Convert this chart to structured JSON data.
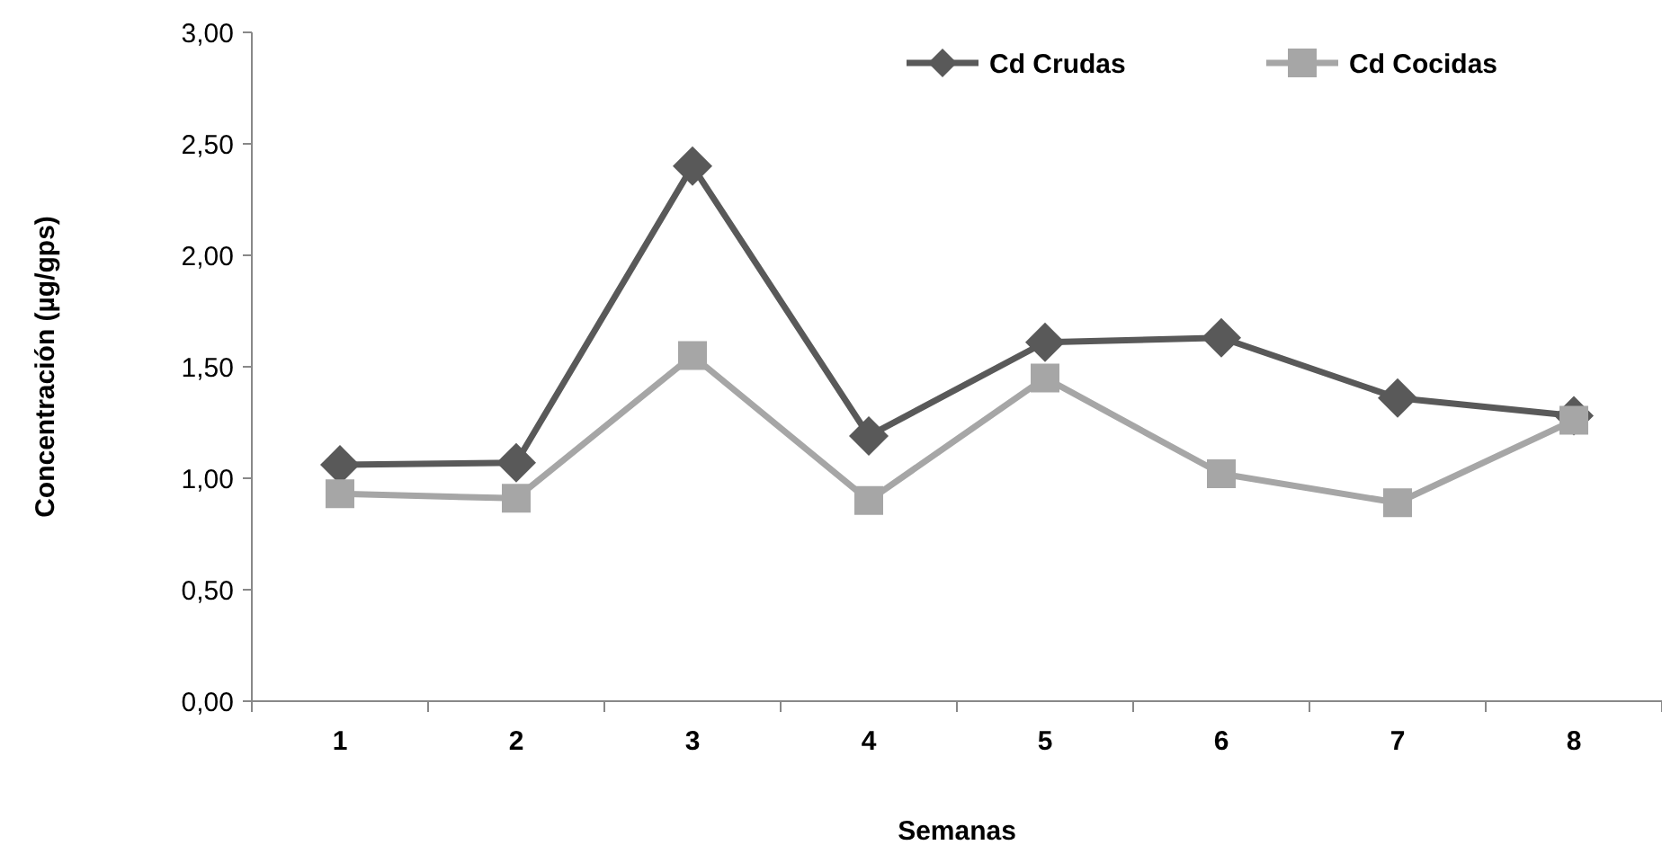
{
  "chart_data": {
    "type": "line",
    "xlabel": "Semanas",
    "ylabel": "Concentración (µg/gps)",
    "categories": [
      "1",
      "2",
      "3",
      "4",
      "5",
      "6",
      "7",
      "8"
    ],
    "series": [
      {
        "name": "Cd Crudas",
        "color": "#595959",
        "marker": "diamond",
        "values": [
          1.06,
          1.07,
          2.4,
          1.19,
          1.61,
          1.63,
          1.36,
          1.28
        ]
      },
      {
        "name": "Cd Cocidas",
        "color": "#a6a6a6",
        "marker": "square",
        "values": [
          0.93,
          0.91,
          1.55,
          0.9,
          1.45,
          1.02,
          0.89,
          1.26
        ]
      }
    ],
    "ylim": [
      0,
      3
    ],
    "yticks": [
      {
        "value": 0,
        "label": "0,00"
      },
      {
        "value": 0.5,
        "label": "0,50"
      },
      {
        "value": 1,
        "label": "1,00"
      },
      {
        "value": 1.5,
        "label": "1,50"
      },
      {
        "value": 2,
        "label": "2,00"
      },
      {
        "value": 2.5,
        "label": "2,50"
      },
      {
        "value": 3,
        "label": "3,00"
      }
    ],
    "grid": false,
    "legend": "top right",
    "line_style": "solid"
  }
}
